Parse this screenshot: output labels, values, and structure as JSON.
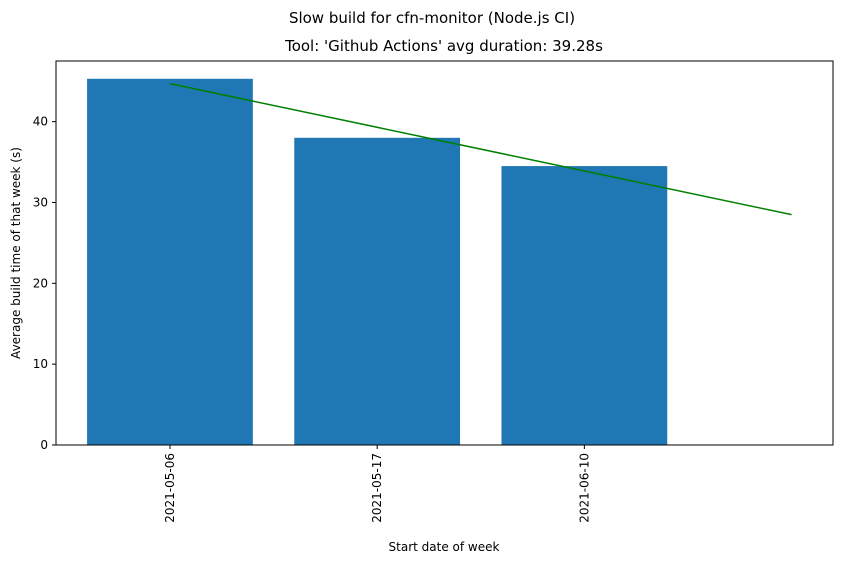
{
  "chart_data": {
    "type": "bar",
    "suptitle": "Slow build for cfn-monitor (Node.js CI)",
    "title": "Tool: 'Github Actions' avg duration: 39.28s",
    "xlabel": "Start date of week",
    "ylabel": "Average build time of that week (s)",
    "categories": [
      "2021-05-06",
      "2021-05-17",
      "2021-06-10"
    ],
    "values": [
      45.3,
      38.0,
      34.5
    ],
    "bar_color": "#1f77b4",
    "trend_line": {
      "color": "#008000",
      "x": [
        0,
        3
      ],
      "y": [
        44.7,
        28.5
      ]
    },
    "ylim": [
      0,
      47.5
    ],
    "yticks": [
      0,
      10,
      20,
      30,
      40
    ],
    "grid": false,
    "legend": "none"
  }
}
